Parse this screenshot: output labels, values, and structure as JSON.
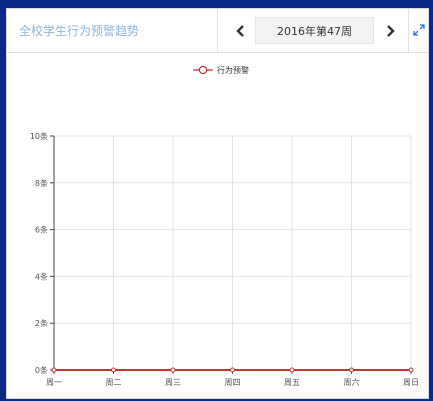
{
  "header": {
    "title": "全校学生行为预警趋势",
    "week_label": "2016年第47周"
  },
  "icons": {
    "prev": "chevron-left-icon",
    "next": "chevron-right-icon",
    "expand": "expand-icon"
  },
  "colors": {
    "series": "#c23531",
    "grid": "#e3e3e3",
    "axis": "#444444"
  },
  "chart_data": {
    "type": "line",
    "title": "",
    "xlabel": "",
    "ylabel": "",
    "categories": [
      "周一",
      "周二",
      "周三",
      "周四",
      "周五",
      "周六",
      "周日"
    ],
    "ylim": [
      0,
      10
    ],
    "ytick_values": [
      0,
      2,
      4,
      6,
      8,
      10
    ],
    "ytick_labels": [
      "0条",
      "2条",
      "4条",
      "6条",
      "8条",
      "10条"
    ],
    "grid": true,
    "legend_position": "top-center",
    "series": [
      {
        "name": "行为预警",
        "values": [
          0,
          0,
          0,
          0,
          0,
          0,
          0
        ]
      }
    ]
  }
}
